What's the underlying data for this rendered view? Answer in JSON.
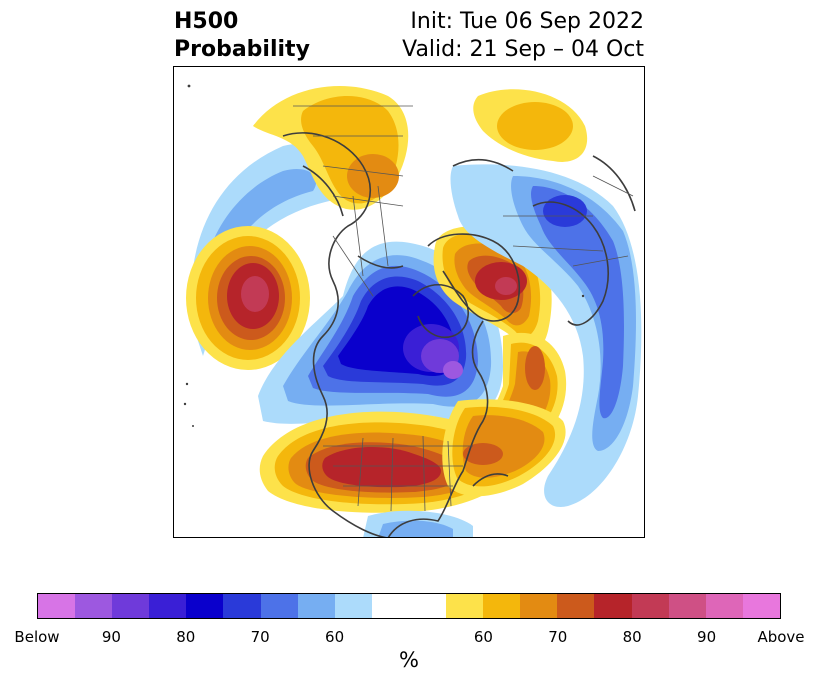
{
  "header": {
    "variable": "H500",
    "product": "Probability",
    "init": "Init: Tue 06 Sep 2022",
    "valid": "Valid: 21 Sep – 04 Oct"
  },
  "colorbar": {
    "colors": [
      "#d774e6",
      "#9d58e0",
      "#6f3ada",
      "#3a1fd6",
      "#0a00cc",
      "#2a3ad9",
      "#4d72e8",
      "#76aef2",
      "#acdbfb",
      "#ffffff",
      "#ffffff",
      "#fde24a",
      "#f4b70c",
      "#e38b12",
      "#cc5a1c",
      "#b6242a",
      "#c23a55",
      "#cf5085",
      "#de66b8",
      "#e877dd"
    ],
    "tick_labels": [
      "Below",
      "90",
      "80",
      "70",
      "60",
      "60",
      "70",
      "80",
      "90",
      "Above"
    ],
    "units": "%"
  },
  "map": {
    "projection": "north polar stereographic",
    "palette": {
      "light_blue": "#acdbfb",
      "blue": "#76aef2",
      "mid_blue": "#4d72e8",
      "dark_blue": "#2a3ad9",
      "navy": "#0a00cc",
      "indigo": "#3a1fd6",
      "purple": "#6f3ada",
      "violet": "#9d58e0",
      "yellow": "#fde24a",
      "gold": "#f4b70c",
      "orange": "#e38b12",
      "burnt": "#cc5a1c",
      "red": "#b6242a",
      "rose": "#c23a55",
      "pink": "#cf5085"
    }
  }
}
